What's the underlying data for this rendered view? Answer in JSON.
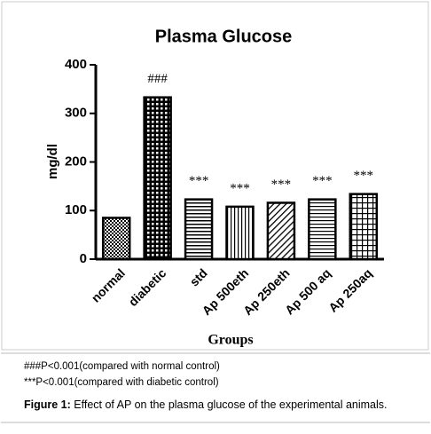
{
  "chart_data": {
    "type": "bar",
    "title": "Plasma Glucose",
    "x_label": "Groups",
    "y_label": "mg/dl",
    "categories": [
      "normal",
      "diabetic",
      "std",
      "Ap 500eth",
      "Ap 250eth",
      "Ap 500 aq",
      "Ap 250aq"
    ],
    "values": [
      85,
      333,
      123,
      108,
      116,
      123,
      134
    ],
    "annotations": [
      null,
      "###",
      "***",
      "***",
      "***",
      "***",
      "***"
    ],
    "color": "#000000",
    "ylim": [
      0,
      400
    ],
    "yticks": [
      0,
      100,
      200,
      300,
      400
    ]
  },
  "footnotes": [
    "###P<0.001(compared with normal control)",
    "***P<0.001(compared with diabetic control)"
  ],
  "caption": {
    "label": "Figure 1:",
    "text": " Effect of AP on the plasma glucose of the experimental animals."
  }
}
